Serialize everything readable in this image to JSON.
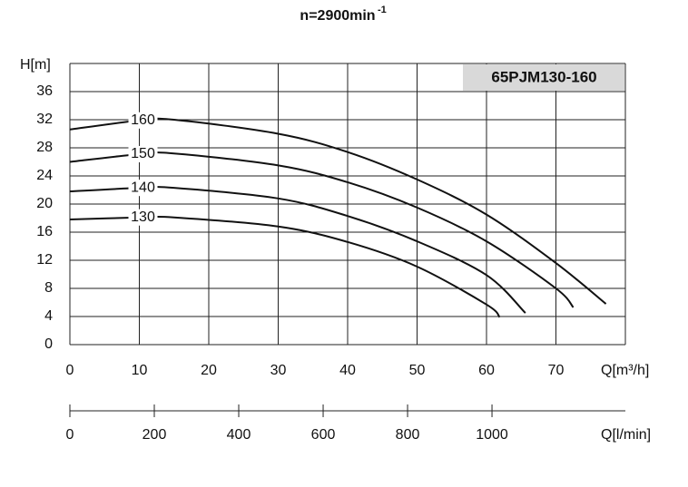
{
  "chart_data": {
    "type": "line",
    "title": "n=2900min",
    "title_superscript": "-1",
    "box_label": "65PJM130-160",
    "y_label": "H[m]",
    "x_label": "Q[m³/h]",
    "x2_label": "Q[l/min]",
    "xlim": [
      0,
      80
    ],
    "xticks": [
      0,
      10,
      20,
      30,
      40,
      50,
      60,
      70
    ],
    "ylim": [
      0,
      40
    ],
    "yticks": [
      0,
      4,
      8,
      12,
      16,
      20,
      24,
      28,
      32,
      36
    ],
    "x2lim": [
      0,
      1316
    ],
    "x2ticks": [
      0,
      200,
      400,
      600,
      800,
      1000
    ],
    "grid": true,
    "color": "#111111",
    "series": [
      {
        "name": "160",
        "x": [
          0,
          10,
          15,
          30,
          40,
          50,
          60,
          70,
          77.2
        ],
        "values": [
          30.6,
          31.9,
          32,
          30,
          27.4,
          23.5,
          18.5,
          11.6,
          5.8
        ]
      },
      {
        "name": "150",
        "x": [
          0,
          10,
          15,
          30,
          40,
          50,
          60,
          70,
          72.5
        ],
        "values": [
          26,
          27.1,
          27.2,
          25.5,
          23.1,
          19.5,
          14.7,
          8,
          5.3
        ]
      },
      {
        "name": "140",
        "x": [
          0,
          10,
          15,
          30,
          40,
          50,
          60,
          65.6
        ],
        "values": [
          21.8,
          22.3,
          22.3,
          20.8,
          18.3,
          14.7,
          9.9,
          4.5
        ]
      },
      {
        "name": "130",
        "x": [
          0,
          10,
          15,
          30,
          40,
          50,
          60,
          61.9
        ],
        "values": [
          17.8,
          18.1,
          18.1,
          16.8,
          14.6,
          11.1,
          5.7,
          3.9
        ]
      }
    ]
  }
}
